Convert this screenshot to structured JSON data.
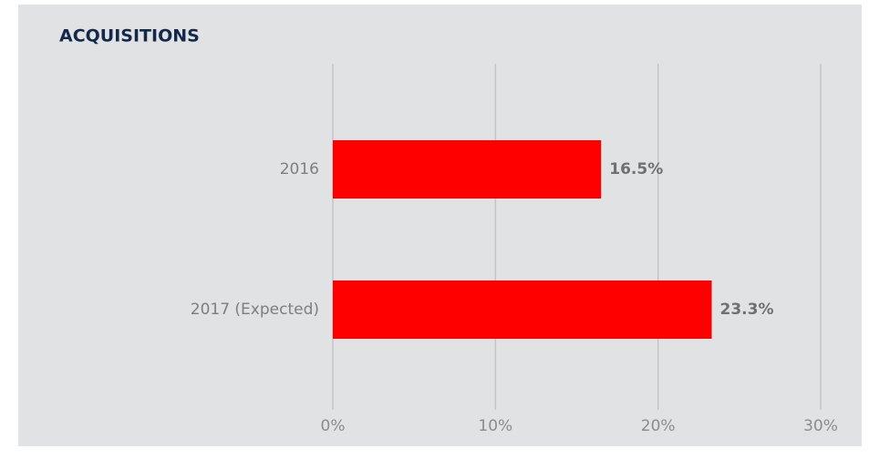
{
  "chart_data": {
    "type": "bar",
    "orientation": "horizontal",
    "title": "ACQUISITIONS",
    "categories": [
      "2016",
      "2017 (Expected)"
    ],
    "values": [
      16.5,
      23.3
    ],
    "value_labels": [
      "16.5%",
      "23.3%"
    ],
    "color": "#ff0000",
    "xlim": [
      0,
      30
    ],
    "xticks": [
      {
        "value": 0,
        "label": "0%"
      },
      {
        "value": 10,
        "label": "10%"
      },
      {
        "value": 20,
        "label": "20%"
      },
      {
        "value": 30,
        "label": "30%"
      }
    ],
    "grid": true
  }
}
